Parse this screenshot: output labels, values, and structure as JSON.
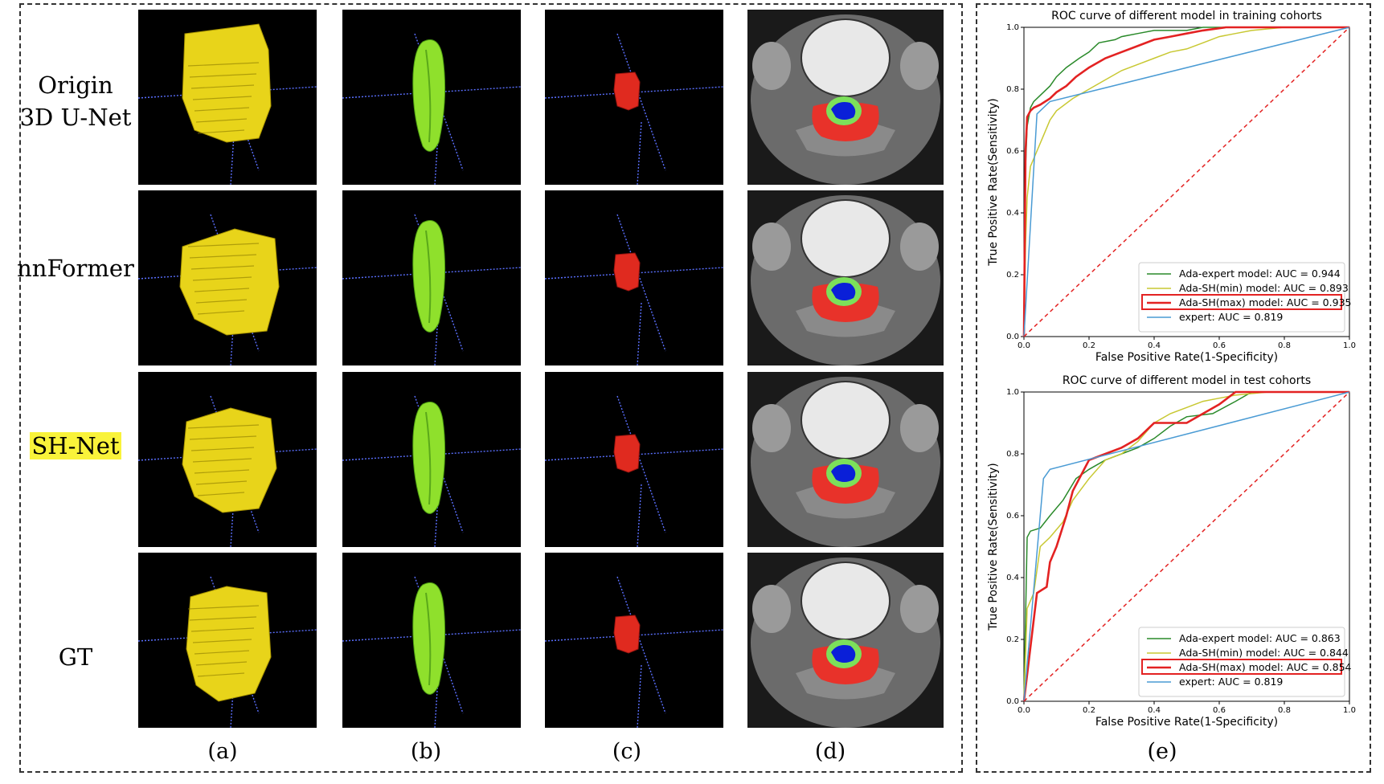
{
  "rows": [
    {
      "label_line1": "Origin",
      "label_line2": "3D U-Net"
    },
    {
      "label_line1": "nnFormer",
      "label_line2": ""
    },
    {
      "label_line1": "SH-Net",
      "label_line2": ""
    },
    {
      "label_line1": "GT",
      "label_line2": ""
    }
  ],
  "columns": [
    "(a)",
    "(b)",
    "(c)",
    "(d)",
    "(e)"
  ],
  "colors": {
    "yellow_volume": "#e8d41a",
    "green_volume": "#8fe02c",
    "red_volume": "#e02a1f",
    "mri_red": "#e8322a",
    "mri_green": "#7ce05a",
    "mri_blue": "#0a1fd8",
    "highlight": "#f9f33a"
  },
  "chart_data": [
    {
      "type": "line",
      "title": "ROC curve of different model in training cohorts",
      "xlabel": "False Positive Rate(1-Specificity)",
      "ylabel": "True Positive Rate(Sensitivity)",
      "xlim": [
        0,
        1
      ],
      "ylim": [
        0,
        1
      ],
      "xticks": [
        "0.0",
        "0.2",
        "0.4",
        "0.6",
        "0.8",
        "1.0"
      ],
      "yticks": [
        "0.0",
        "0.2",
        "0.4",
        "0.6",
        "0.8",
        "1.0"
      ],
      "legend_position": "lower-right",
      "series": [
        {
          "name": "Ada-expert model: AUC = 0.944",
          "color": "#2a8a2a",
          "highlighted": false,
          "x": [
            0,
            0.005,
            0.01,
            0.02,
            0.03,
            0.05,
            0.08,
            0.1,
            0.13,
            0.17,
            0.2,
            0.23,
            0.28,
            0.3,
            0.35,
            0.4,
            0.45,
            0.5,
            0.55,
            0.62,
            0.7,
            0.8,
            1.0
          ],
          "y": [
            0,
            0.55,
            0.68,
            0.74,
            0.76,
            0.78,
            0.81,
            0.84,
            0.87,
            0.9,
            0.92,
            0.95,
            0.96,
            0.97,
            0.98,
            0.99,
            0.99,
            0.99,
            1.0,
            1.0,
            1.0,
            1.0,
            1.0
          ]
        },
        {
          "name": "Ada-SH(min) model: AUC = 0.893",
          "color": "#c8c832",
          "highlighted": false,
          "x": [
            0,
            0.005,
            0.01,
            0.02,
            0.04,
            0.06,
            0.08,
            0.1,
            0.15,
            0.2,
            0.25,
            0.3,
            0.35,
            0.4,
            0.45,
            0.5,
            0.55,
            0.6,
            0.65,
            0.7,
            0.8,
            1.0
          ],
          "y": [
            0,
            0.3,
            0.45,
            0.55,
            0.6,
            0.65,
            0.7,
            0.73,
            0.77,
            0.8,
            0.83,
            0.86,
            0.88,
            0.9,
            0.92,
            0.93,
            0.95,
            0.97,
            0.98,
            0.99,
            1.0,
            1.0
          ]
        },
        {
          "name": "Ada-SH(max) model: AUC = 0.935",
          "color": "#e32222",
          "highlighted": true,
          "x": [
            0,
            0.005,
            0.01,
            0.02,
            0.03,
            0.05,
            0.08,
            0.1,
            0.13,
            0.16,
            0.2,
            0.25,
            0.3,
            0.35,
            0.4,
            0.45,
            0.5,
            0.55,
            0.62,
            0.7,
            0.8,
            1.0
          ],
          "y": [
            0,
            0.6,
            0.71,
            0.73,
            0.74,
            0.75,
            0.77,
            0.79,
            0.81,
            0.84,
            0.87,
            0.9,
            0.92,
            0.94,
            0.96,
            0.97,
            0.98,
            0.99,
            1.0,
            1.0,
            1.0,
            1.0
          ]
        },
        {
          "name": "expert: AUC = 0.819",
          "color": "#4a9bd4",
          "highlighted": false,
          "x": [
            0,
            0.04,
            0.08,
            1.0
          ],
          "y": [
            0,
            0.72,
            0.76,
            1.0
          ]
        },
        {
          "name": "",
          "color": "#e32222",
          "dashed": true,
          "highlighted": false,
          "x": [
            0,
            1
          ],
          "y": [
            0,
            1
          ]
        }
      ]
    },
    {
      "type": "line",
      "title": "ROC curve of different model in test cohorts",
      "xlabel": "False Positive Rate(1-Specificity)",
      "ylabel": "True Positive Rate(Sensitivity)",
      "xlim": [
        0,
        1
      ],
      "ylim": [
        0,
        1
      ],
      "xticks": [
        "0.0",
        "0.2",
        "0.4",
        "0.6",
        "0.8",
        "1.0"
      ],
      "yticks": [
        "0.0",
        "0.2",
        "0.4",
        "0.6",
        "0.8",
        "1.0"
      ],
      "legend_position": "lower-right",
      "series": [
        {
          "name": "Ada-expert model: AUC = 0.863",
          "color": "#2a8a2a",
          "highlighted": false,
          "x": [
            0,
            0.01,
            0.02,
            0.05,
            0.08,
            0.12,
            0.16,
            0.2,
            0.25,
            0.3,
            0.35,
            0.4,
            0.45,
            0.5,
            0.58,
            0.65,
            0.7,
            0.8,
            1.0
          ],
          "y": [
            0,
            0.53,
            0.55,
            0.56,
            0.6,
            0.65,
            0.72,
            0.75,
            0.78,
            0.8,
            0.82,
            0.85,
            0.89,
            0.92,
            0.93,
            0.97,
            1.0,
            1.0,
            1.0
          ]
        },
        {
          "name": "Ada-SH(min) model: AUC = 0.844",
          "color": "#c8c832",
          "highlighted": false,
          "x": [
            0,
            0.01,
            0.03,
            0.05,
            0.08,
            0.12,
            0.15,
            0.2,
            0.25,
            0.3,
            0.35,
            0.4,
            0.45,
            0.5,
            0.55,
            0.6,
            0.65,
            0.75,
            1.0
          ],
          "y": [
            0,
            0.3,
            0.35,
            0.5,
            0.53,
            0.58,
            0.65,
            0.72,
            0.78,
            0.8,
            0.84,
            0.9,
            0.93,
            0.95,
            0.97,
            0.98,
            0.99,
            1.0,
            1.0
          ]
        },
        {
          "name": "Ada-SH(max) model: AUC = 0.854",
          "color": "#e32222",
          "highlighted": true,
          "x": [
            0,
            0.04,
            0.07,
            0.08,
            0.1,
            0.13,
            0.15,
            0.2,
            0.25,
            0.3,
            0.35,
            0.4,
            0.45,
            0.5,
            0.55,
            0.6,
            0.65,
            0.75,
            0.85,
            1.0
          ],
          "y": [
            0,
            0.35,
            0.37,
            0.45,
            0.5,
            0.6,
            0.68,
            0.78,
            0.8,
            0.82,
            0.85,
            0.9,
            0.9,
            0.9,
            0.93,
            0.96,
            1.0,
            1.0,
            1.0,
            1.0
          ]
        },
        {
          "name": "expert: AUC = 0.819",
          "color": "#4a9bd4",
          "highlighted": false,
          "x": [
            0,
            0.06,
            0.08,
            1.0
          ],
          "y": [
            0,
            0.72,
            0.75,
            1.0
          ]
        },
        {
          "name": "",
          "color": "#e32222",
          "dashed": true,
          "highlighted": false,
          "x": [
            0,
            1
          ],
          "y": [
            0,
            1
          ]
        }
      ]
    }
  ]
}
